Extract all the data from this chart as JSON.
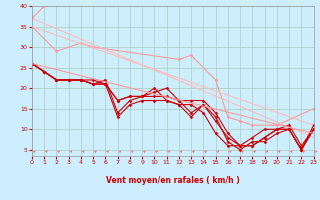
{
  "bg_color": "#cceeff",
  "grid_color": "#aaccbb",
  "xlabel": "Vent moyen/en rafales ( km/h )",
  "xlim": [
    0,
    23
  ],
  "ylim": [
    5,
    40
  ],
  "yticks": [
    5,
    10,
    15,
    20,
    25,
    30,
    35,
    40
  ],
  "xticks": [
    0,
    1,
    2,
    3,
    4,
    5,
    6,
    7,
    8,
    9,
    10,
    11,
    12,
    13,
    14,
    15,
    16,
    17,
    18,
    19,
    20,
    21,
    22,
    23
  ],
  "lines": [
    {
      "x": [
        0,
        1
      ],
      "y": [
        37,
        40
      ],
      "color": "#ff9999",
      "lw": 0.8,
      "marker": "D",
      "ms": 1.5
    },
    {
      "x": [
        0,
        2,
        4,
        5,
        12,
        13,
        15,
        16,
        17,
        18,
        20,
        23
      ],
      "y": [
        35,
        29,
        31,
        30,
        27,
        28,
        22,
        13,
        12,
        11,
        11,
        15
      ],
      "color": "#ff9999",
      "lw": 0.8,
      "marker": "D",
      "ms": 1.5
    },
    {
      "x": [
        0,
        23
      ],
      "y": [
        37,
        8
      ],
      "color": "#ffbbbb",
      "lw": 0.8,
      "marker": null,
      "ms": 0
    },
    {
      "x": [
        0,
        23
      ],
      "y": [
        35,
        11
      ],
      "color": "#ffbbbb",
      "lw": 0.8,
      "marker": null,
      "ms": 0
    },
    {
      "x": [
        0,
        1,
        2,
        3,
        4,
        5,
        6,
        7,
        8,
        9,
        10,
        11,
        12,
        13,
        14,
        15,
        16,
        17,
        18,
        19,
        20,
        21,
        22,
        23
      ],
      "y": [
        26,
        24,
        22,
        22,
        22,
        21,
        22,
        14,
        17,
        18,
        18,
        18,
        17,
        14,
        16,
        12,
        8,
        6,
        6,
        8,
        10,
        10,
        5,
        11
      ],
      "color": "#cc0000",
      "lw": 0.8,
      "marker": "D",
      "ms": 1.5
    },
    {
      "x": [
        0,
        1,
        2,
        3,
        4,
        5,
        6,
        7,
        8,
        9,
        10,
        11,
        12,
        13,
        14,
        15,
        16,
        17,
        18,
        19,
        20,
        21,
        22,
        23
      ],
      "y": [
        26,
        24,
        22,
        22,
        22,
        22,
        21,
        13,
        16,
        17,
        17,
        17,
        16,
        13,
        16,
        13,
        7,
        5,
        7,
        7,
        9,
        10,
        5,
        10
      ],
      "color": "#cc0000",
      "lw": 0.8,
      "marker": "D",
      "ms": 1.5
    },
    {
      "x": [
        0,
        1,
        2,
        3,
        4,
        5,
        6,
        7,
        8,
        9,
        10,
        11,
        12,
        13,
        14,
        15,
        16,
        17,
        18,
        19,
        20,
        21,
        22,
        23
      ],
      "y": [
        26,
        24,
        22,
        22,
        22,
        21,
        21,
        17,
        18,
        18,
        19,
        20,
        17,
        17,
        17,
        14,
        9,
        6,
        6,
        8,
        10,
        11,
        6,
        10
      ],
      "color": "#cc0000",
      "lw": 0.8,
      "marker": "D",
      "ms": 1.5
    },
    {
      "x": [
        0,
        1,
        2,
        3,
        4,
        5,
        6,
        7,
        8,
        9,
        10,
        11,
        12,
        13,
        14,
        15,
        16,
        17,
        18,
        19,
        20,
        21,
        22,
        23
      ],
      "y": [
        26,
        24,
        22,
        22,
        22,
        21,
        21,
        17,
        18,
        18,
        20,
        17,
        16,
        16,
        14,
        9,
        6,
        6,
        8,
        10,
        10,
        10,
        5,
        10
      ],
      "color": "#cc0000",
      "lw": 0.8,
      "marker": "D",
      "ms": 1.5
    },
    {
      "x": [
        0,
        23
      ],
      "y": [
        26,
        9
      ],
      "color": "#ff9999",
      "lw": 0.8,
      "marker": null,
      "ms": 0
    }
  ],
  "arrow_color": "#ff6666",
  "tick_color": "#cc0000",
  "label_color": "#cc0000"
}
